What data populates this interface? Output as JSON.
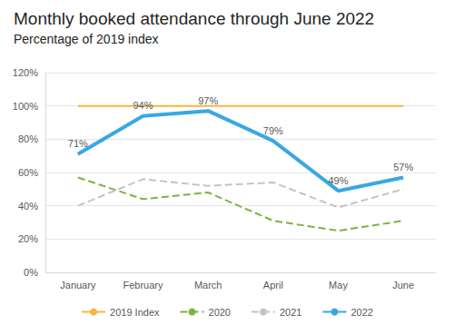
{
  "chart_data": {
    "type": "line",
    "title": "Monthly booked attendance through June 2022",
    "subtitle": "Percentage of 2019 index",
    "categories": [
      "January",
      "February",
      "March",
      "April",
      "May",
      "June"
    ],
    "series": [
      {
        "name": "2019 Index",
        "color": "#f5b83d",
        "line_style": "solid",
        "marker": "none",
        "values": [
          100,
          100,
          100,
          100,
          100,
          100
        ]
      },
      {
        "name": "2020",
        "color": "#7cb342",
        "line_style": "dashed",
        "marker": "none",
        "values": [
          57,
          44,
          48,
          31,
          25,
          31
        ]
      },
      {
        "name": "2021",
        "color": "#c4c4c4",
        "line_style": "dashed",
        "marker": "none",
        "values": [
          40,
          56,
          52,
          54,
          39,
          50
        ]
      },
      {
        "name": "2022",
        "color": "#3aa8e0",
        "line_style": "solid",
        "marker": "none",
        "data_labels": true,
        "values": [
          71,
          94,
          97,
          79,
          49,
          57
        ],
        "value_labels": [
          "71%",
          "94%",
          "97%",
          "79%",
          "49%",
          "57%"
        ]
      }
    ],
    "ylim": [
      0,
      120
    ],
    "yticks": [
      {
        "value": 0,
        "label": "0%"
      },
      {
        "value": 20,
        "label": "20%"
      },
      {
        "value": 40,
        "label": "40%"
      },
      {
        "value": 60,
        "label": "60%"
      },
      {
        "value": 80,
        "label": "80%"
      },
      {
        "value": 100,
        "label": "100%"
      },
      {
        "value": 120,
        "label": "120%"
      }
    ],
    "grid": true,
    "legend": "bottom"
  }
}
